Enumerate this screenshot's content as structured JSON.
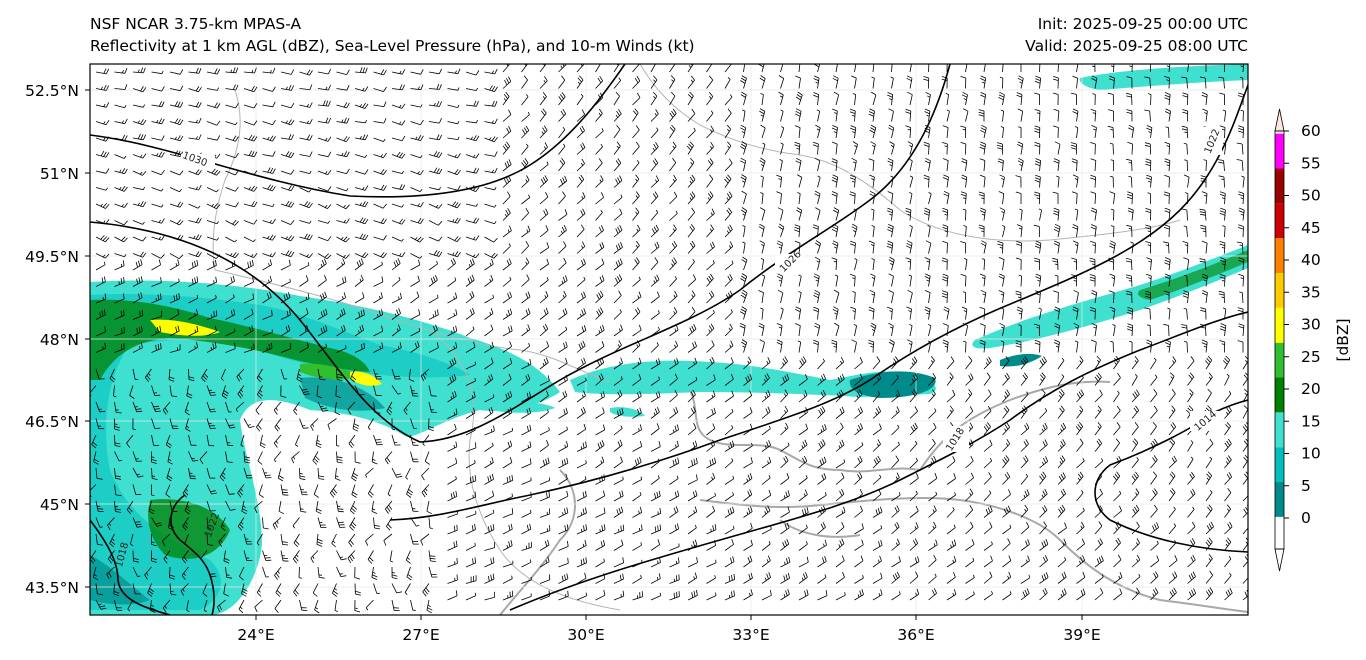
{
  "header": {
    "model": "NSF NCAR 3.75-km MPAS-A",
    "fields": "Reflectivity at 1 km AGL (dBZ), Sea-Level Pressure (hPa), and 10-m Winds (kt)",
    "init": "Init: 2025-09-25 00:00 UTC",
    "valid": "Valid: 2025-09-25 08:00 UTC"
  },
  "map": {
    "lon_range": [
      21,
      42
    ],
    "lat_range": [
      42.8,
      53.0
    ],
    "lon_ticks": [
      "24°E",
      "27°E",
      "30°E",
      "33°E",
      "36°E",
      "39°E"
    ],
    "lat_ticks": [
      "52.5°N",
      "51°N",
      "49.5°N",
      "48°N",
      "46.5°N",
      "45°N",
      "43.5°N"
    ],
    "isobar_labels": [
      "1030",
      "1026",
      "1022",
      "1018",
      "1014",
      "1022",
      "1018"
    ]
  },
  "colorbar": {
    "label": "[dBZ]",
    "ticks": [
      "0",
      "5",
      "10",
      "15",
      "20",
      "25",
      "30",
      "35",
      "40",
      "45",
      "50",
      "55",
      "60"
    ],
    "colors": [
      "#ffffff",
      "#008b8b",
      "#00bfbf",
      "#40e0d0",
      "#008000",
      "#2fbf2f",
      "#ffff00",
      "#ffcc00",
      "#ff8000",
      "#cc0000",
      "#990000",
      "#ff00ff",
      "#ffe4e1"
    ]
  }
}
